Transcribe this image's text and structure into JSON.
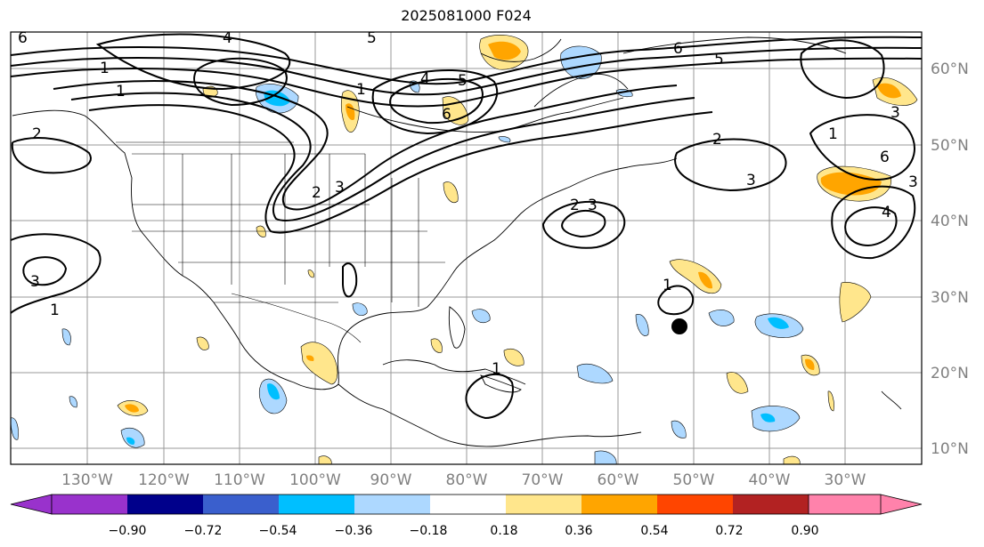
{
  "title": "2025081000 F024",
  "lon_labels": [
    "130°W",
    "120°W",
    "110°W",
    "100°W",
    "90°W",
    "80°W",
    "70°W",
    "60°W",
    "50°W",
    "40°W",
    "30°W"
  ],
  "lat_labels": [
    "60°N",
    "50°N",
    "40°N",
    "30°N",
    "20°N",
    "10°N"
  ],
  "contour_labels": [
    "6",
    "4",
    "1",
    "1",
    "2",
    "1",
    "5",
    "6",
    "4",
    "5",
    "2",
    "3",
    "6",
    "5",
    "3",
    "2",
    "3",
    "1",
    "3",
    "6",
    "4",
    "2",
    "3",
    "1",
    "1",
    "1",
    "3"
  ],
  "colorbar": {
    "colors": [
      "#9932cc",
      "#00008b",
      "#3a5fcd",
      "#00bfff",
      "#add8ff",
      "#ffffff",
      "#ffe68c",
      "#ffa500",
      "#ff4500",
      "#b22222",
      "#ff82ab"
    ],
    "tick_labels": [
      "−0.90",
      "−0.72",
      "−0.54",
      "−0.36",
      "−0.18",
      "0.18",
      "0.36",
      "0.54",
      "0.72",
      "0.90"
    ]
  },
  "marker": "filled-circle"
}
